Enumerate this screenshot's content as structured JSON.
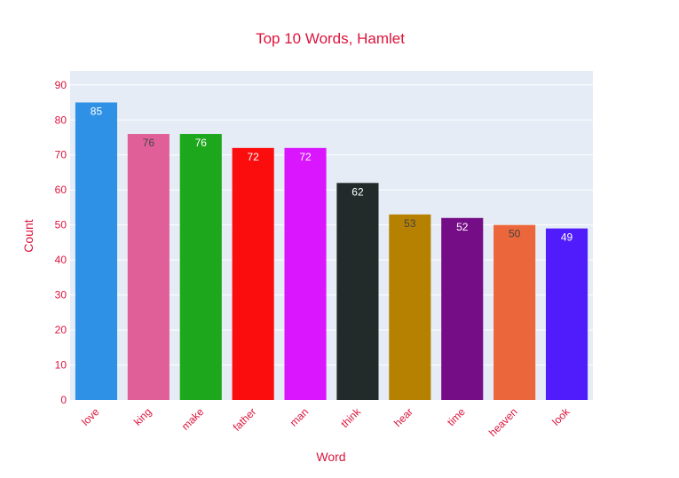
{
  "chart_data": {
    "type": "bar",
    "title": "Top 10 Words, Hamlet",
    "xlabel": "Word",
    "ylabel": "Count",
    "categories": [
      "love",
      "king",
      "make",
      "father",
      "man",
      "think",
      "hear",
      "time",
      "heaven",
      "look"
    ],
    "values": [
      85,
      76,
      76,
      72,
      72,
      62,
      53,
      52,
      50,
      49
    ],
    "bar_colors": [
      "#2E91E5",
      "#E15F99",
      "#1CA71C",
      "#FB0D0D",
      "#DA16FF",
      "#222A2A",
      "#B68100",
      "#750D86",
      "#EB663B",
      "#511CFB"
    ],
    "label_colors": [
      "#ffffff",
      "#444444",
      "#ffffff",
      "#ffffff",
      "#ffffff",
      "#ffffff",
      "#444444",
      "#ffffff",
      "#444444",
      "#ffffff"
    ],
    "ylim": [
      0,
      94
    ],
    "yticks": [
      0,
      10,
      20,
      30,
      40,
      50,
      60,
      70,
      80,
      90
    ],
    "grid": true,
    "legend": "none",
    "colors": {
      "text": "#DC143C",
      "plot_background": "#E5ECF6",
      "grid": "#ffffff"
    }
  }
}
